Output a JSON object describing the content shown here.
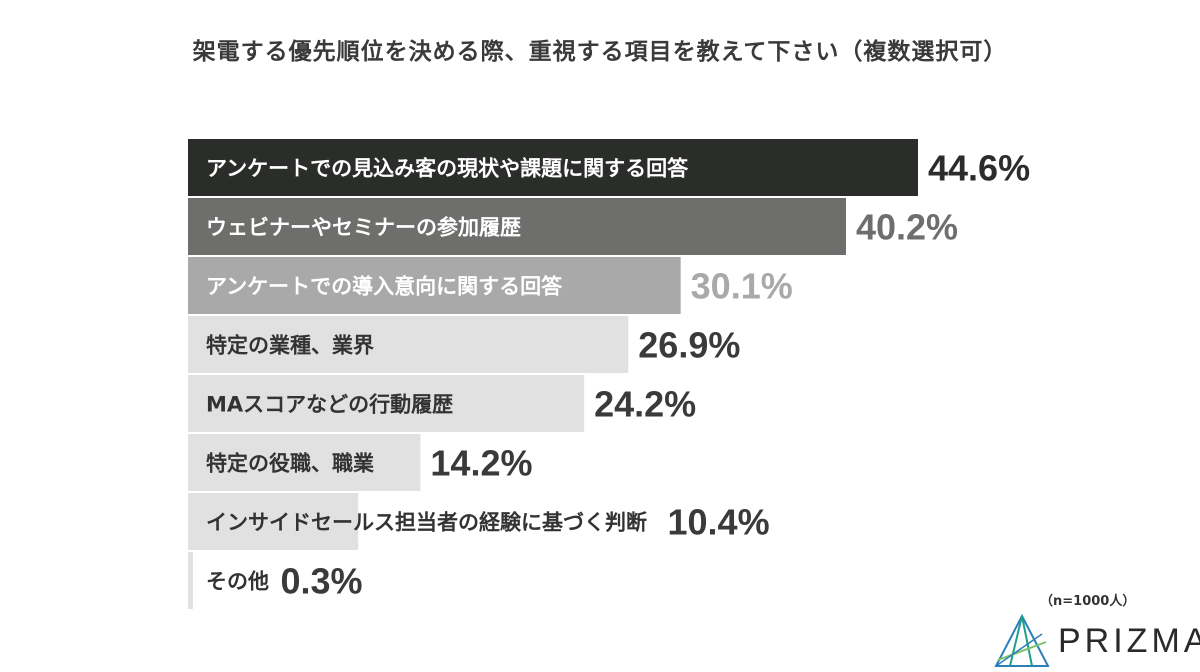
{
  "chart_data": {
    "type": "bar",
    "orientation": "horizontal",
    "title": "架電する優先順位を決める際、重視する項目を教えて下さい（複数選択可）",
    "categories": [
      "アンケートでの見込み客の現状や課題に関する回答",
      "ウェビナーやセミナーの参加履歴",
      "アンケートでの導入意向に関する回答",
      "特定の業種、業界",
      "MAスコアなどの行動履歴",
      "特定の役職、職業",
      "インサイドセールス担当者の経験に基づく判断",
      "その他"
    ],
    "values": [
      44.6,
      40.2,
      30.1,
      26.9,
      24.2,
      14.2,
      10.4,
      0.3
    ],
    "value_labels": [
      "44.6%",
      "40.2%",
      "30.1%",
      "26.9%",
      "24.2%",
      "14.2%",
      "10.4%",
      "0.3%"
    ],
    "bar_colors": [
      "#2b2d2a",
      "#6e6f6c",
      "#a9a9a9",
      "#e1e1e1",
      "#e1e1e1",
      "#e1e1e1",
      "#e1e1e1",
      "#e1e1e1"
    ],
    "label_colors": [
      "#ffffff",
      "#ffffff",
      "#ffffff",
      "#333333",
      "#333333",
      "#333333",
      "#333333",
      "#333333"
    ],
    "value_colors": [
      "#2b2d2a",
      "#6e6f6c",
      "#a9a9a9",
      "#3a3a3a",
      "#3a3a3a",
      "#3a3a3a",
      "#3a3a3a",
      "#3a3a3a"
    ],
    "grid": false,
    "legend": "none"
  },
  "footnote": "（n=1000人）",
  "brand": {
    "name": "PRIZMA",
    "colors": [
      "#1e9e8a",
      "#2c7fb8",
      "#7cc36a"
    ]
  }
}
